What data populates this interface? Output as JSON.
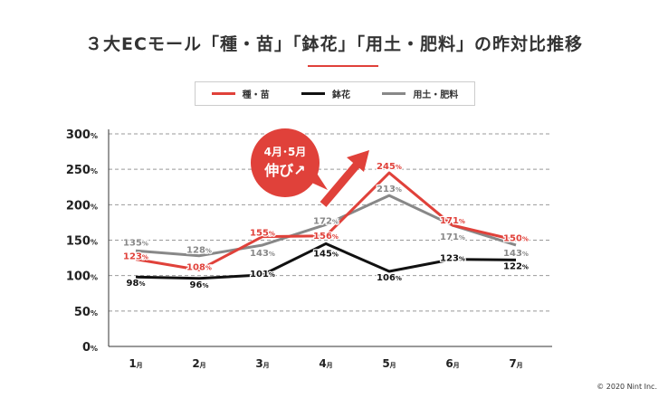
{
  "chart_data": {
    "type": "line",
    "title": "３大ECモール「種・苗」「鉢花」「用土・肥料」の昨対比推移",
    "xlabel": "",
    "ylabel": "",
    "categories": [
      "1月",
      "2月",
      "3月",
      "4月",
      "5月",
      "6月",
      "7月"
    ],
    "month_numbers": [
      "1",
      "2",
      "3",
      "4",
      "5",
      "6",
      "7"
    ],
    "month_suffix": "月",
    "ylim": [
      0,
      300
    ],
    "yticks": [
      0,
      50,
      100,
      150,
      200,
      250,
      300
    ],
    "ytick_suffix": "%",
    "value_suffix": "%",
    "grid": true,
    "legend_position": "top-center",
    "series": [
      {
        "name": "種・苗",
        "color": "#e0413a",
        "values": [
          123,
          108,
          155,
          156,
          245,
          171,
          150
        ]
      },
      {
        "name": "鉢花",
        "color": "#111111",
        "values": [
          98,
          96,
          101,
          145,
          106,
          123,
          122
        ]
      },
      {
        "name": "用土・肥料",
        "color": "#888888",
        "values": [
          135,
          128,
          143,
          172,
          213,
          171,
          143
        ]
      }
    ],
    "annotation": {
      "line1": "4月･5月",
      "line2": "伸び↗",
      "color": "#e0413a"
    }
  },
  "copyright": "© 2020 Nint Inc."
}
